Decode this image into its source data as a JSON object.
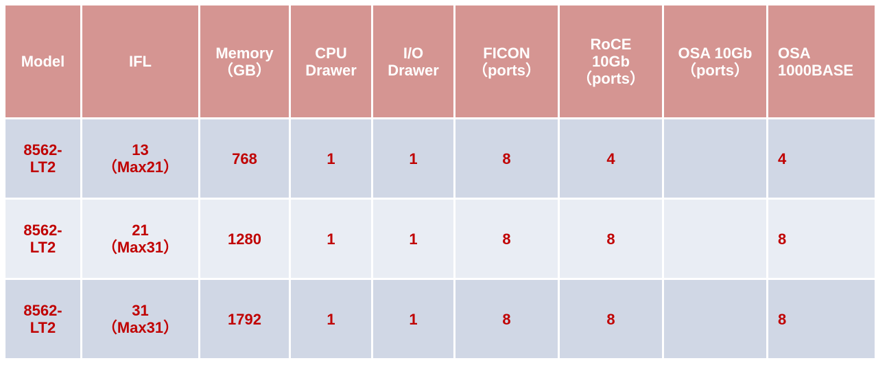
{
  "table": {
    "headers": [
      "Model",
      "IFL",
      "Memory\n（GB）",
      "CPU\nDrawer",
      "I/O\nDrawer",
      "FICON\n（ports）",
      "RoCE\n10Gb\n（ports）",
      "OSA 10Gb\n（ports）",
      "OSA\n1000BASE"
    ],
    "rows": [
      [
        "8562-\nLT2",
        "13\n（Max21）",
        "768",
        "1",
        "1",
        "8",
        "4",
        "",
        "4"
      ],
      [
        "8562-\nLT2",
        "21\n（Max31）",
        "1280",
        "1",
        "1",
        "8",
        "8",
        "",
        "8"
      ],
      [
        "8562-\nLT2",
        "31\n（Max31）",
        "1792",
        "1",
        "1",
        "8",
        "8",
        "",
        "8"
      ]
    ]
  },
  "colors": {
    "header_bg": "#D59592",
    "row_odd": "#D0D7E5",
    "row_even": "#E9EDF4",
    "cell_text": "#C00000",
    "header_text": "#FFFFFF"
  }
}
